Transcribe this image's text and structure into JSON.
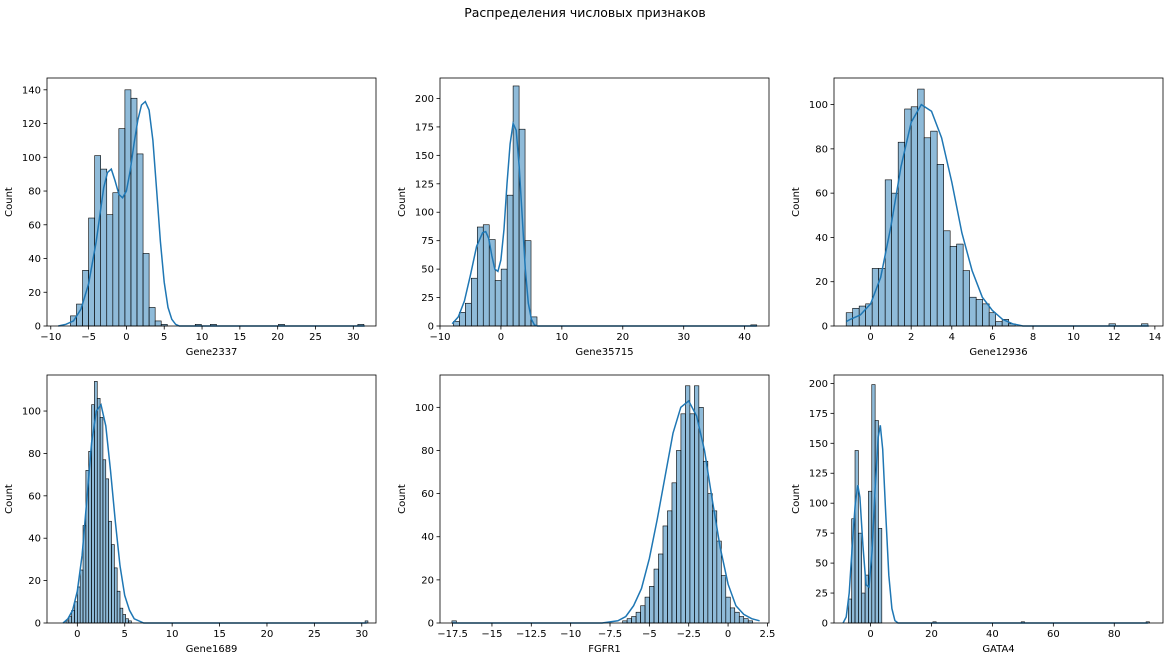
{
  "figure": {
    "suptitle": "Распределения числовых признаков"
  },
  "style": {
    "bar_fill": "#1f77b4",
    "bar_fill_opacity": 0.5,
    "bar_edge": "#000000",
    "kde_color": "#1f77b4"
  },
  "chart_data": [
    {
      "type": "histogram-kde",
      "xlabel": "Gene2337",
      "ylabel": "Count",
      "xlim": [
        -10.5,
        33
      ],
      "ylim": [
        0,
        147
      ],
      "xticks": [
        -10,
        -5,
        0,
        5,
        10,
        15,
        20,
        25,
        30
      ],
      "yticks": [
        0,
        20,
        40,
        60,
        80,
        100,
        120,
        140
      ],
      "bins": {
        "start": -7.4,
        "width": 0.8,
        "counts": [
          6,
          13,
          33,
          64,
          101,
          93,
          66,
          79,
          117,
          140,
          135,
          102,
          43,
          11,
          3,
          1
        ]
      },
      "outliers": [
        [
          9.5,
          1
        ],
        [
          11.5,
          1
        ],
        [
          20.5,
          1
        ],
        [
          31,
          1
        ]
      ],
      "kde": [
        [
          -9,
          0
        ],
        [
          -8,
          1
        ],
        [
          -7,
          3
        ],
        [
          -6,
          10
        ],
        [
          -5,
          25
        ],
        [
          -4,
          50
        ],
        [
          -3,
          82
        ],
        [
          -2.5,
          91
        ],
        [
          -2,
          93
        ],
        [
          -1.5,
          86
        ],
        [
          -1,
          78
        ],
        [
          -0.5,
          76
        ],
        [
          0,
          80
        ],
        [
          0.5,
          92
        ],
        [
          1,
          108
        ],
        [
          1.5,
          122
        ],
        [
          2,
          131
        ],
        [
          2.5,
          133
        ],
        [
          3,
          128
        ],
        [
          3.5,
          110
        ],
        [
          4,
          80
        ],
        [
          4.5,
          50
        ],
        [
          5,
          26
        ],
        [
          5.5,
          11
        ],
        [
          6,
          4
        ],
        [
          6.5,
          1
        ],
        [
          7,
          0
        ],
        [
          10,
          0
        ],
        [
          31.5,
          0
        ]
      ]
    },
    {
      "type": "histogram-kde",
      "xlabel": "Gene35715",
      "ylabel": "Count",
      "xlim": [
        -10,
        44
      ],
      "ylim": [
        0,
        218
      ],
      "xticks": [
        -10,
        0,
        10,
        20,
        30,
        40
      ],
      "yticks": [
        0,
        25,
        50,
        75,
        100,
        125,
        150,
        175,
        200
      ],
      "bins": {
        "start": -7.8,
        "width": 0.98,
        "counts": [
          4,
          12,
          20,
          42,
          87,
          89,
          76,
          40,
          50,
          115,
          211,
          173,
          75,
          8
        ]
      },
      "outliers": [
        [
          41.5,
          1
        ]
      ],
      "kde": [
        [
          -8,
          2
        ],
        [
          -7,
          8
        ],
        [
          -6,
          22
        ],
        [
          -5,
          45
        ],
        [
          -4,
          70
        ],
        [
          -3,
          82
        ],
        [
          -2.5,
          83
        ],
        [
          -2,
          77
        ],
        [
          -1.5,
          62
        ],
        [
          -1,
          50
        ],
        [
          -0.5,
          48
        ],
        [
          0,
          58
        ],
        [
          0.5,
          85
        ],
        [
          1,
          125
        ],
        [
          1.5,
          160
        ],
        [
          2,
          178
        ],
        [
          2.5,
          172
        ],
        [
          3,
          140
        ],
        [
          3.5,
          95
        ],
        [
          4,
          50
        ],
        [
          4.5,
          20
        ],
        [
          5,
          6
        ],
        [
          5.5,
          1
        ],
        [
          6,
          0
        ],
        [
          10,
          0
        ],
        [
          42,
          0
        ]
      ]
    },
    {
      "type": "histogram-kde",
      "xlabel": "Gene12936",
      "ylabel": "Count",
      "xlim": [
        -1.8,
        14.4
      ],
      "ylim": [
        0,
        112
      ],
      "xticks": [
        0,
        2,
        4,
        6,
        8,
        10,
        12,
        14
      ],
      "yticks": [
        0,
        20,
        40,
        60,
        80,
        100
      ],
      "bins": {
        "start": -1.2,
        "width": 0.32,
        "counts": [
          6,
          8,
          9,
          10,
          26,
          26,
          66,
          60,
          83,
          98,
          99,
          107,
          85,
          88,
          73,
          43,
          36,
          37,
          25,
          13,
          12,
          10,
          6,
          2,
          3,
          1
        ]
      },
      "outliers": [
        [
          11.9,
          1
        ],
        [
          13.5,
          1
        ]
      ],
      "kde": [
        [
          -1.2,
          2
        ],
        [
          -1,
          3
        ],
        [
          -0.5,
          5
        ],
        [
          0,
          10
        ],
        [
          0.5,
          22
        ],
        [
          1,
          45
        ],
        [
          1.5,
          72
        ],
        [
          2,
          92
        ],
        [
          2.5,
          100
        ],
        [
          3,
          97
        ],
        [
          3.5,
          85
        ],
        [
          4,
          65
        ],
        [
          4.5,
          42
        ],
        [
          5,
          25
        ],
        [
          5.5,
          13
        ],
        [
          6,
          7
        ],
        [
          6.5,
          3
        ],
        [
          7,
          1
        ],
        [
          7.5,
          0
        ],
        [
          9,
          0
        ],
        [
          13.7,
          0
        ]
      ]
    },
    {
      "type": "histogram-kde",
      "xlabel": "Gene1689",
      "ylabel": "Count",
      "xlim": [
        -3.2,
        31.5
      ],
      "ylim": [
        0,
        117
      ],
      "xticks": [
        0,
        5,
        10,
        15,
        20,
        25,
        30
      ],
      "yticks": [
        0,
        20,
        40,
        60,
        80,
        100
      ],
      "bins": {
        "start": -1.2,
        "width": 0.3,
        "counts": [
          1,
          3,
          6,
          10,
          17,
          25,
          46,
          72,
          81,
          103,
          114,
          106,
          97,
          77,
          68,
          48,
          37,
          26,
          15,
          7,
          4,
          2,
          1
        ]
      },
      "outliers": [
        [
          30.5,
          1
        ]
      ],
      "kde": [
        [
          -1.5,
          0
        ],
        [
          -1,
          2
        ],
        [
          -0.5,
          6
        ],
        [
          0,
          15
        ],
        [
          0.5,
          32
        ],
        [
          1,
          58
        ],
        [
          1.5,
          85
        ],
        [
          2,
          100
        ],
        [
          2.5,
          103
        ],
        [
          3,
          93
        ],
        [
          3.5,
          72
        ],
        [
          4,
          48
        ],
        [
          4.5,
          27
        ],
        [
          5,
          13
        ],
        [
          5.5,
          6
        ],
        [
          6,
          2
        ],
        [
          7,
          0
        ],
        [
          10,
          0
        ],
        [
          30.5,
          0
        ]
      ]
    },
    {
      "type": "histogram-kde",
      "xlabel": "FGFR1",
      "ylabel": "Count",
      "xlim": [
        -18.3,
        2.6
      ],
      "ylim": [
        0,
        115
      ],
      "xticks": [
        -17.5,
        -15.0,
        -12.5,
        -10.0,
        -7.5,
        -5.0,
        -2.5,
        0.0,
        2.5
      ],
      "ytick_labels_visible": [
        0,
        20,
        40,
        60,
        80,
        100
      ],
      "yticks": [
        0,
        20,
        40,
        60,
        80,
        100
      ],
      "bins": {
        "start": -6.7,
        "width": 0.285,
        "counts": [
          1,
          2,
          3,
          5,
          8,
          12,
          17,
          25,
          32,
          45,
          52,
          65,
          80,
          97,
          110,
          97,
          110,
          100,
          75,
          60,
          52,
          38,
          22,
          12,
          7,
          5,
          3,
          2,
          1
        ]
      },
      "outliers": [
        [
          -17.4,
          1
        ]
      ],
      "kde": [
        [
          -17.5,
          0
        ],
        [
          -8,
          0
        ],
        [
          -7,
          1
        ],
        [
          -6.5,
          3
        ],
        [
          -6,
          8
        ],
        [
          -5.5,
          16
        ],
        [
          -5,
          30
        ],
        [
          -4.5,
          48
        ],
        [
          -4,
          68
        ],
        [
          -3.5,
          88
        ],
        [
          -3,
          100
        ],
        [
          -2.5,
          103
        ],
        [
          -2,
          96
        ],
        [
          -1.5,
          80
        ],
        [
          -1,
          57
        ],
        [
          -0.5,
          35
        ],
        [
          0,
          18
        ],
        [
          0.5,
          8
        ],
        [
          1,
          4
        ],
        [
          1.5,
          2
        ],
        [
          2,
          1
        ]
      ]
    },
    {
      "type": "histogram-kde",
      "xlabel": "GATA4",
      "ylabel": "Count",
      "xlim": [
        -12,
        96
      ],
      "ylim": [
        0,
        207
      ],
      "xticks": [
        0,
        20,
        40,
        60,
        80
      ],
      "yticks": [
        0,
        25,
        50,
        75,
        100,
        125,
        150,
        175,
        200
      ],
      "bins": {
        "start": -7.3,
        "width": 1.1,
        "counts": [
          20,
          87,
          144,
          75,
          25,
          40,
          110,
          199,
          169,
          79
        ]
      },
      "outliers": [
        [
          21,
          1
        ],
        [
          50,
          1
        ],
        [
          91,
          1
        ]
      ],
      "kde": [
        [
          -9,
          0
        ],
        [
          -8,
          5
        ],
        [
          -7,
          25
        ],
        [
          -6,
          65
        ],
        [
          -5,
          100
        ],
        [
          -4.2,
          115
        ],
        [
          -3.5,
          105
        ],
        [
          -2.5,
          65
        ],
        [
          -1.5,
          32
        ],
        [
          -0.5,
          30
        ],
        [
          0.5,
          60
        ],
        [
          1.5,
          112
        ],
        [
          2.5,
          155
        ],
        [
          3.2,
          165
        ],
        [
          4,
          145
        ],
        [
          5,
          90
        ],
        [
          6,
          40
        ],
        [
          7,
          12
        ],
        [
          8,
          2
        ],
        [
          9,
          0
        ],
        [
          20,
          0
        ],
        [
          91,
          0
        ]
      ]
    }
  ]
}
